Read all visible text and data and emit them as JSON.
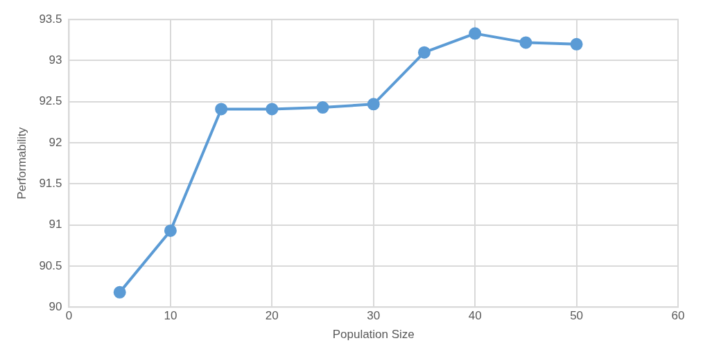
{
  "chart_data": {
    "type": "line",
    "xlabel": "Population Size",
    "ylabel": "Performability",
    "x": [
      5,
      10,
      15,
      20,
      25,
      30,
      35,
      40,
      45,
      50
    ],
    "series": [
      {
        "color": "#5b9bd5",
        "values": [
          90.18,
          90.93,
          92.41,
          92.41,
          92.43,
          92.47,
          93.1,
          93.33,
          93.22,
          93.2
        ]
      }
    ],
    "xlim": [
      0,
      60
    ],
    "xticks": [
      0,
      10,
      20,
      30,
      40,
      50,
      60
    ],
    "ylim": [
      90,
      93.5
    ],
    "yticks": [
      90,
      90.5,
      91,
      91.5,
      92,
      92.5,
      93,
      93.5
    ],
    "grid": true,
    "legend": false,
    "marker": "circle",
    "line_style": "solid"
  }
}
